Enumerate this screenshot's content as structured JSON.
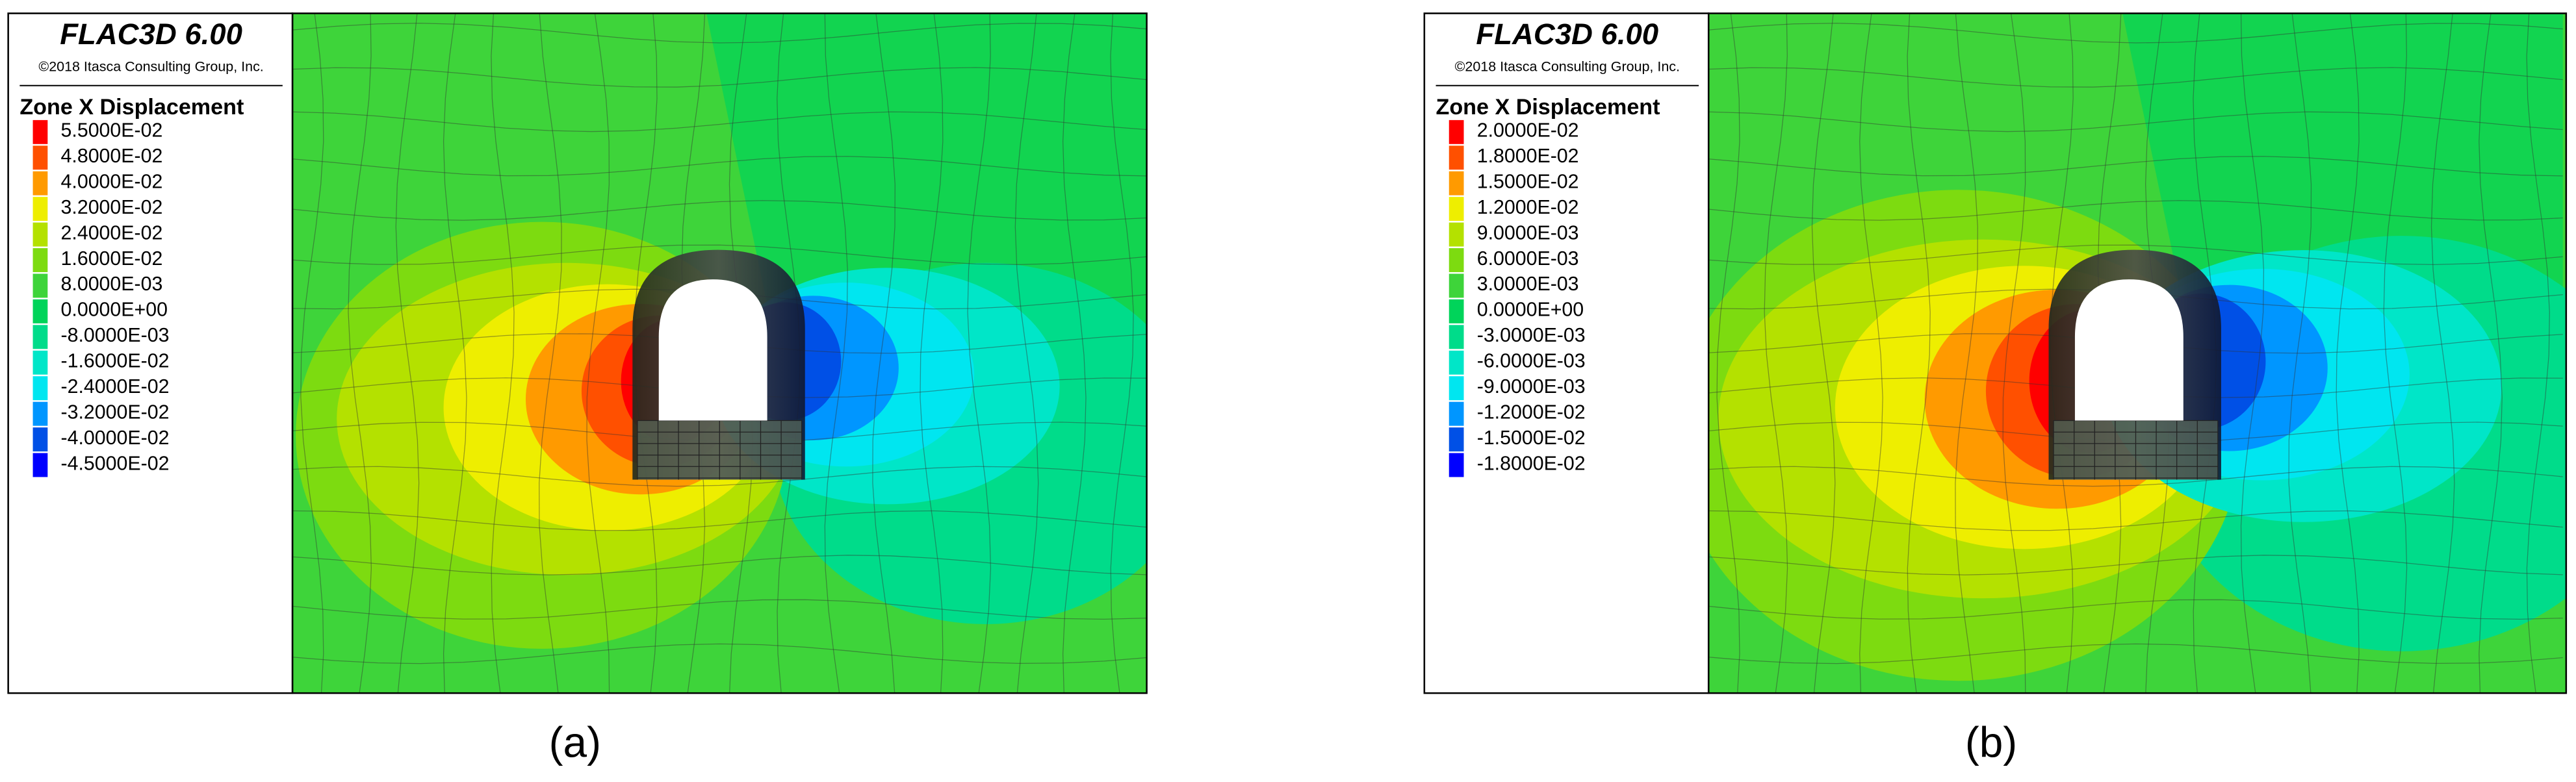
{
  "panels": [
    {
      "header": {
        "title": "FLAC3D 6.00",
        "copyright": "©2018 Itasca Consulting Group, Inc."
      },
      "legend": {
        "title": "Zone X Displacement",
        "items": [
          {
            "label": "5.5000E-02",
            "color": "#ff0000"
          },
          {
            "label": "4.8000E-02",
            "color": "#ff5000"
          },
          {
            "label": "4.0000E-02",
            "color": "#ff9a00"
          },
          {
            "label": "3.2000E-02",
            "color": "#eeee00"
          },
          {
            "label": "2.4000E-02",
            "color": "#b4e100"
          },
          {
            "label": "1.6000E-02",
            "color": "#7ddb10"
          },
          {
            "label": "8.0000E-03",
            "color": "#3ed43a"
          },
          {
            "label": "0.0000E+00",
            "color": "#00d45a"
          },
          {
            "label": "-8.0000E-03",
            "color": "#00dc8a"
          },
          {
            "label": "-1.6000E-02",
            "color": "#00e6c8"
          },
          {
            "label": "-2.4000E-02",
            "color": "#00e6f0"
          },
          {
            "label": "-3.2000E-02",
            "color": "#0096ff"
          },
          {
            "label": "-4.0000E-02",
            "color": "#0050e6"
          },
          {
            "label": "-4.5000E-02",
            "color": "#0000ff"
          }
        ]
      },
      "caption": "(a)"
    },
    {
      "header": {
        "title": "FLAC3D 6.00",
        "copyright": "©2018 Itasca Consulting Group, Inc."
      },
      "legend": {
        "title": "Zone X Displacement",
        "items": [
          {
            "label": "2.0000E-02",
            "color": "#ff0000"
          },
          {
            "label": "1.8000E-02",
            "color": "#ff5000"
          },
          {
            "label": "1.5000E-02",
            "color": "#ff9a00"
          },
          {
            "label": "1.2000E-02",
            "color": "#eeee00"
          },
          {
            "label": "9.0000E-03",
            "color": "#b4e100"
          },
          {
            "label": "6.0000E-03",
            "color": "#7ddb10"
          },
          {
            "label": "3.0000E-03",
            "color": "#3ed43a"
          },
          {
            "label": "0.0000E+00",
            "color": "#00d45a"
          },
          {
            "label": "-3.0000E-03",
            "color": "#00dc8a"
          },
          {
            "label": "-6.0000E-03",
            "color": "#00e6c8"
          },
          {
            "label": "-9.0000E-03",
            "color": "#00e6f0"
          },
          {
            "label": "-1.2000E-02",
            "color": "#0096ff"
          },
          {
            "label": "-1.5000E-02",
            "color": "#0050e6"
          },
          {
            "label": "-1.8000E-02",
            "color": "#0000ff"
          }
        ]
      },
      "caption": "(b)"
    }
  ]
}
